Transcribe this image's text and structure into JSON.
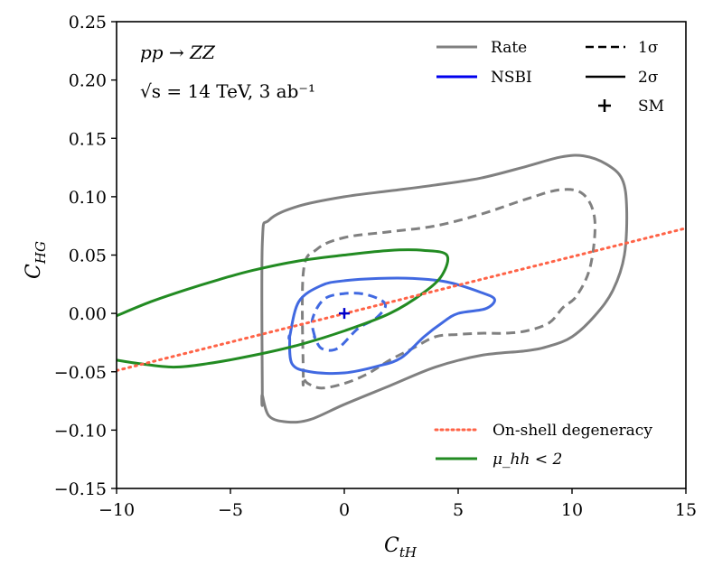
{
  "chart_data": {
    "type": "contour",
    "xlabel": "C_tH",
    "ylabel": "C_HG",
    "xlim": [
      -10,
      15
    ],
    "ylim": [
      -0.15,
      0.25
    ],
    "xticks": [
      -10,
      -5,
      0,
      5,
      10,
      15
    ],
    "yticks": [
      -0.15,
      -0.1,
      -0.05,
      0.0,
      0.05,
      0.1,
      0.15,
      0.2,
      0.25
    ],
    "xtick_labels": [
      "−10",
      "−5",
      "0",
      "5",
      "10",
      "15"
    ],
    "ytick_labels": [
      "−0.15",
      "−0.10",
      "−0.05",
      "0.00",
      "0.05",
      "0.10",
      "0.15",
      "0.20",
      "0.25"
    ],
    "annotations": {
      "process": "pp → ZZ",
      "energy": "√s = 14 TeV,  3 ab⁻¹"
    },
    "colors": {
      "rate": "#808080",
      "nsbi": "#4169e1",
      "nsbi_legend": "#0000ee",
      "degeneracy": "#ff6347",
      "mu_hh": "#228b22",
      "sm": "#0000cc"
    },
    "series": [
      {
        "name": "Rate",
        "level": "2σ",
        "style": "solid",
        "color": "#808080",
        "points": [
          [
            -3.6,
            -0.07
          ],
          [
            -3.6,
            0.06
          ],
          [
            -3.3,
            0.08
          ],
          [
            -2,
            0.092
          ],
          [
            0,
            0.1
          ],
          [
            2,
            0.105
          ],
          [
            4,
            0.11
          ],
          [
            6,
            0.116
          ],
          [
            8,
            0.126
          ],
          [
            9.5,
            0.134
          ],
          [
            10.5,
            0.135
          ],
          [
            11.5,
            0.128
          ],
          [
            12.2,
            0.115
          ],
          [
            12.4,
            0.09
          ],
          [
            12.3,
            0.05
          ],
          [
            11.8,
            0.02
          ],
          [
            11,
            -0.002
          ],
          [
            10,
            -0.02
          ],
          [
            9,
            -0.028
          ],
          [
            8,
            -0.032
          ],
          [
            6,
            -0.036
          ],
          [
            4,
            -0.046
          ],
          [
            2,
            -0.062
          ],
          [
            0,
            -0.078
          ],
          [
            -1.5,
            -0.091
          ],
          [
            -2.5,
            -0.093
          ],
          [
            -3.3,
            -0.088
          ],
          [
            -3.6,
            -0.07
          ]
        ]
      },
      {
        "name": "Rate",
        "level": "1σ",
        "style": "dashed",
        "color": "#808080",
        "points": [
          [
            -1.8,
            -0.055
          ],
          [
            -1.8,
            0.035
          ],
          [
            -1.2,
            0.055
          ],
          [
            0,
            0.065
          ],
          [
            2,
            0.07
          ],
          [
            4,
            0.075
          ],
          [
            6,
            0.085
          ],
          [
            8,
            0.098
          ],
          [
            9.5,
            0.106
          ],
          [
            10.5,
            0.102
          ],
          [
            11,
            0.08
          ],
          [
            10.8,
            0.04
          ],
          [
            10.2,
            0.015
          ],
          [
            9.6,
            0.005
          ],
          [
            9,
            -0.008
          ],
          [
            8,
            -0.015
          ],
          [
            7,
            -0.017
          ],
          [
            6,
            -0.017
          ],
          [
            5,
            -0.018
          ],
          [
            4,
            -0.02
          ],
          [
            3,
            -0.03
          ],
          [
            2,
            -0.04
          ],
          [
            1,
            -0.052
          ],
          [
            0,
            -0.06
          ],
          [
            -1,
            -0.064
          ],
          [
            -1.6,
            -0.06
          ],
          [
            -1.8,
            -0.055
          ]
        ]
      },
      {
        "name": "NSBI",
        "level": "2σ",
        "style": "solid",
        "color": "#4169e1",
        "points": [
          [
            -2.4,
            -0.02
          ],
          [
            -2.3,
            -0.043
          ],
          [
            -1.5,
            -0.05
          ],
          [
            0,
            -0.051
          ],
          [
            1.5,
            -0.045
          ],
          [
            2.5,
            -0.038
          ],
          [
            3.5,
            -0.02
          ],
          [
            4.3,
            -0.008
          ],
          [
            5,
            0.0
          ],
          [
            6.2,
            0.004
          ],
          [
            6.6,
            0.012
          ],
          [
            6,
            0.018
          ],
          [
            4.5,
            0.027
          ],
          [
            3,
            0.03
          ],
          [
            1.5,
            0.03
          ],
          [
            0,
            0.028
          ],
          [
            -1,
            0.024
          ],
          [
            -2,
            0.01
          ],
          [
            -2.4,
            -0.02
          ]
        ]
      },
      {
        "name": "NSBI",
        "level": "1σ",
        "style": "dashed",
        "color": "#4169e1",
        "points": [
          [
            -1.3,
            -0.02
          ],
          [
            -1.4,
            -0.005
          ],
          [
            -0.9,
            0.012
          ],
          [
            0,
            0.017
          ],
          [
            1,
            0.016
          ],
          [
            1.8,
            0.008
          ],
          [
            1.4,
            -0.004
          ],
          [
            0.6,
            -0.013
          ],
          [
            -0.3,
            -0.03
          ],
          [
            -1,
            -0.03
          ],
          [
            -1.3,
            -0.02
          ]
        ]
      },
      {
        "name": "μ_hh < 2",
        "style": "solid",
        "color": "#228b22",
        "points": [
          [
            -10,
            -0.002
          ],
          [
            -8.5,
            0.01
          ],
          [
            -7,
            0.02
          ],
          [
            -5.5,
            0.029
          ],
          [
            -4,
            0.037
          ],
          [
            -2,
            0.045
          ],
          [
            0,
            0.05
          ],
          [
            2,
            0.054
          ],
          [
            3.5,
            0.054
          ],
          [
            4.5,
            0.05
          ],
          [
            4.3,
            0.033
          ],
          [
            3.5,
            0.018
          ],
          [
            2,
            0.0
          ],
          [
            0,
            -0.015
          ],
          [
            -2,
            -0.027
          ],
          [
            -4,
            -0.036
          ],
          [
            -6,
            -0.043
          ],
          [
            -7.5,
            -0.046
          ],
          [
            -9,
            -0.043
          ],
          [
            -10,
            -0.04
          ]
        ]
      },
      {
        "name": "On-shell degeneracy",
        "style": "dotted",
        "color": "#ff6347",
        "points": [
          [
            -10,
            -0.049
          ],
          [
            15,
            0.073
          ]
        ]
      }
    ],
    "sm_point": {
      "label": "SM",
      "x": 0,
      "y": 0
    },
    "legend": {
      "placement": "top-right",
      "col1": [
        {
          "label": "Rate",
          "style": "solid",
          "color": "#808080"
        },
        {
          "label": "NSBI",
          "style": "solid",
          "color": "#0000ee"
        }
      ],
      "col2": [
        {
          "label": "1σ",
          "style": "dashed",
          "color": "#000000"
        },
        {
          "label": "2σ",
          "style": "solid",
          "color": "#000000"
        },
        {
          "label": "SM",
          "style": "marker",
          "color": "#000000"
        }
      ],
      "bottom": [
        {
          "label": "On-shell degeneracy",
          "style": "dotted",
          "color": "#ff6347"
        },
        {
          "label": "μ_hh < 2",
          "style": "solid",
          "color": "#228b22"
        }
      ]
    }
  }
}
